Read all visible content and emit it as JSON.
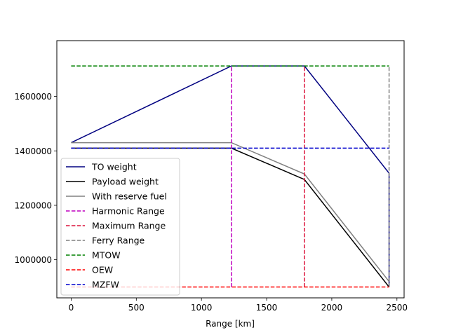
{
  "chart_data": {
    "type": "line",
    "title": "",
    "xlabel": "Range [km]",
    "ylabel": "",
    "xlim": [
      -110,
      2555
    ],
    "ylim": [
      860000,
      1805000
    ],
    "xticks": [
      0,
      500,
      1000,
      1500,
      2000,
      2500
    ],
    "yticks": [
      1000000,
      1200000,
      1400000,
      1600000
    ],
    "grid": false,
    "legend_position": "lower-left",
    "series": [
      {
        "name": "TO weight",
        "color": "#000080",
        "dash": "solid",
        "x": [
          0,
          1230,
          1790,
          2440,
          2440
        ],
        "y": [
          1430000,
          1712000,
          1712000,
          1318000,
          900000
        ]
      },
      {
        "name": "Payload weight",
        "color": "#000000",
        "dash": "solid",
        "x": [
          0,
          1230,
          1790,
          2440
        ],
        "y": [
          1410000,
          1410000,
          1295000,
          900000
        ]
      },
      {
        "name": "With reserve fuel",
        "color": "#808080",
        "dash": "solid",
        "x": [
          0,
          1230,
          1790,
          2440
        ],
        "y": [
          1430000,
          1430000,
          1315000,
          920000
        ]
      },
      {
        "name": "Harmonic Range",
        "color": "#bf00bf",
        "dash": "dashed",
        "x": [
          1230,
          1230
        ],
        "y": [
          900000,
          1712000
        ]
      },
      {
        "name": "Maximum Range",
        "color": "#dc143c",
        "dash": "dashed",
        "x": [
          1790,
          1790
        ],
        "y": [
          900000,
          1712000
        ]
      },
      {
        "name": "Ferry Range",
        "color": "#808080",
        "dash": "dashed",
        "x": [
          2440,
          2440
        ],
        "y": [
          900000,
          1712000
        ]
      },
      {
        "name": "MTOW",
        "color": "#008000",
        "dash": "dashed",
        "x": [
          0,
          2440
        ],
        "y": [
          1712000,
          1712000
        ]
      },
      {
        "name": "OEW",
        "color": "#ff0000",
        "dash": "dashed",
        "x": [
          0,
          2440
        ],
        "y": [
          900000,
          900000
        ]
      },
      {
        "name": "MZFW",
        "color": "#0000cd",
        "dash": "dashed",
        "x": [
          0,
          2440
        ],
        "y": [
          1410000,
          1410000
        ]
      }
    ]
  }
}
